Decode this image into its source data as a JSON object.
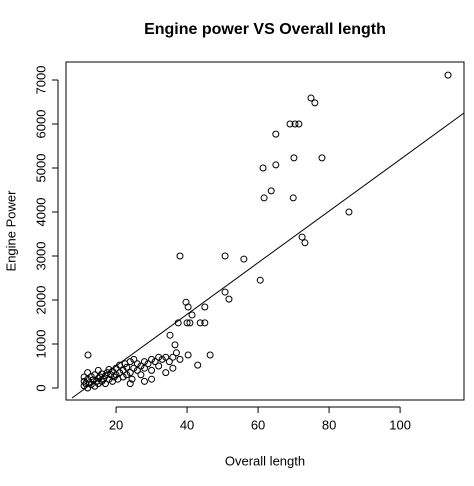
{
  "chart_data": {
    "type": "scatter",
    "title": "Engine power VS Overall length",
    "xlabel": "Overall length",
    "ylabel": "Engine Power",
    "xlim": [
      5.9,
      118
    ],
    "ylim": [
      -273,
      7409
    ],
    "xticks": [
      20,
      40,
      60,
      80,
      100
    ],
    "yticks": [
      0,
      1000,
      2000,
      3000,
      4000,
      5000,
      6000,
      7000
    ],
    "color": "#000000",
    "x": [
      113.5,
      74.9,
      76,
      65,
      69,
      70.4,
      71.5,
      78,
      70.1,
      65,
      61.4,
      63.7,
      61.7,
      69.9,
      85.6,
      72.4,
      73.2,
      38,
      50.7,
      56,
      60.6,
      50.7,
      51.8,
      39.7,
      40.3,
      45,
      41.4,
      40,
      40.8,
      43.7,
      45,
      37.5,
      35.2,
      46.5,
      43,
      40.3,
      36.6,
      11,
      11,
      11,
      11.5,
      12,
      12,
      12,
      12.5,
      13,
      13,
      12.1,
      13.5,
      14,
      14,
      14.5,
      15,
      15,
      15,
      15.5,
      16,
      16,
      16.5,
      17,
      17,
      17.5,
      18,
      18,
      18.5,
      19,
      19,
      19.5,
      20,
      20,
      20.5,
      21,
      21,
      22,
      22,
      22.5,
      23,
      23,
      24,
      24,
      24.5,
      25,
      25,
      26,
      26,
      27,
      27,
      28,
      28,
      29,
      30,
      30,
      31,
      32,
      32,
      33,
      34,
      35,
      36,
      37,
      38,
      30,
      28,
      34,
      36,
      24
    ],
    "values": [
      7110,
      6590,
      6480,
      5770,
      6000,
      6000,
      6000,
      5230,
      5230,
      5070,
      5000,
      4480,
      4320,
      4320,
      4000,
      3430,
      3300,
      3000,
      3000,
      2930,
      2450,
      2180,
      2020,
      1950,
      1840,
      1840,
      1660,
      1480,
      1480,
      1480,
      1480,
      1480,
      1200,
      750,
      520,
      750,
      980,
      50,
      150,
      250,
      100,
      0,
      200,
      350,
      120,
      80,
      260,
      750,
      180,
      40,
      300,
      150,
      100,
      220,
      400,
      250,
      150,
      320,
      200,
      100,
      280,
      350,
      200,
      420,
      300,
      150,
      380,
      250,
      300,
      450,
      200,
      350,
      520,
      250,
      400,
      550,
      300,
      470,
      350,
      600,
      200,
      450,
      650,
      400,
      550,
      500,
      300,
      600,
      450,
      550,
      650,
      400,
      600,
      700,
      500,
      650,
      700,
      600,
      700,
      800,
      650,
      200,
      150,
      350,
      450,
      100
    ],
    "fit": {
      "x": [
        7.6,
        118
      ],
      "y": [
        -227,
        6250
      ]
    }
  }
}
